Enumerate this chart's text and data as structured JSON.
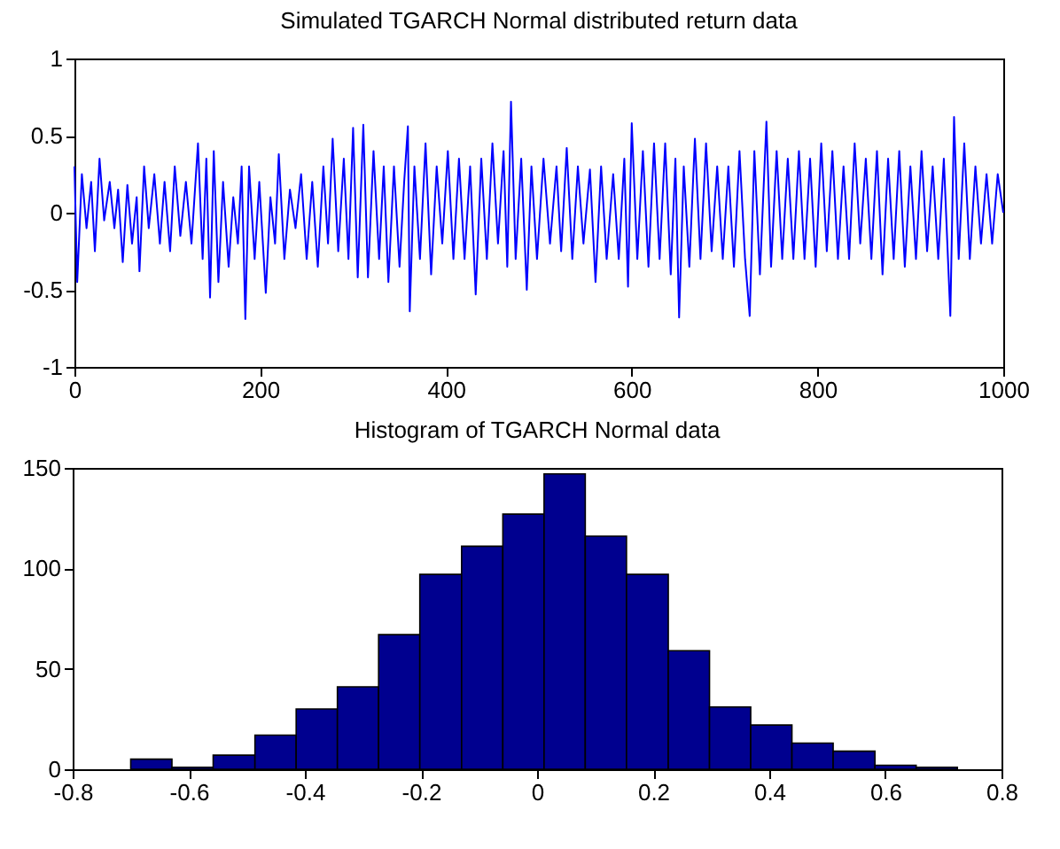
{
  "chart_data": [
    {
      "type": "line",
      "title": "Simulated TGARCH Normal distributed return data",
      "color": "#0000ff",
      "xlim": [
        0,
        1000
      ],
      "ylim": [
        -1,
        1
      ],
      "xticks": [
        0,
        200,
        400,
        600,
        800,
        1000
      ],
      "yticks": [
        -1,
        -0.5,
        0,
        0.5,
        1
      ],
      "grid": false,
      "x": [
        0,
        3,
        8,
        13,
        18,
        22,
        27,
        32,
        38,
        43,
        47,
        52,
        57,
        62,
        67,
        70,
        75,
        80,
        86,
        92,
        97,
        103,
        108,
        114,
        120,
        126,
        133,
        138,
        142,
        146,
        150,
        155,
        160,
        166,
        171,
        176,
        180,
        184,
        188,
        194,
        199,
        206,
        211,
        216,
        220,
        226,
        232,
        238,
        244,
        250,
        256,
        262,
        268,
        273,
        278,
        284,
        290,
        295,
        300,
        305,
        311,
        316,
        322,
        328,
        333,
        338,
        344,
        350,
        355,
        359,
        361,
        366,
        372,
        378,
        384,
        390,
        396,
        402,
        408,
        414,
        420,
        426,
        432,
        438,
        444,
        450,
        456,
        462,
        466,
        470,
        475,
        481,
        487,
        492,
        498,
        505,
        512,
        519,
        524,
        530,
        536,
        542,
        548,
        555,
        561,
        567,
        573,
        580,
        586,
        592,
        596,
        600,
        606,
        612,
        618,
        624,
        630,
        636,
        642,
        647,
        651,
        656,
        662,
        668,
        674,
        680,
        686,
        692,
        698,
        704,
        710,
        716,
        722,
        727,
        732,
        738,
        745,
        750,
        756,
        762,
        768,
        774,
        780,
        786,
        792,
        798,
        804,
        810,
        816,
        822,
        828,
        834,
        840,
        846,
        852,
        858,
        864,
        870,
        876,
        882,
        888,
        894,
        900,
        906,
        912,
        918,
        924,
        930,
        936,
        943,
        947,
        952,
        958,
        964,
        970,
        976,
        982,
        988,
        994,
        1000
      ],
      "values": [
        0.3,
        -0.45,
        0.25,
        -0.1,
        0.2,
        -0.25,
        0.35,
        -0.05,
        0.2,
        -0.1,
        0.15,
        -0.32,
        0.18,
        -0.2,
        0.1,
        -0.38,
        0.3,
        -0.1,
        0.25,
        -0.2,
        0.2,
        -0.25,
        0.3,
        -0.15,
        0.2,
        -0.2,
        0.45,
        -0.3,
        0.35,
        -0.55,
        0.4,
        -0.45,
        0.2,
        -0.35,
        0.1,
        -0.2,
        0.3,
        -0.69,
        0.3,
        -0.3,
        0.2,
        -0.52,
        0.1,
        -0.2,
        0.38,
        -0.3,
        0.15,
        -0.1,
        0.25,
        -0.3,
        0.2,
        -0.35,
        0.3,
        -0.2,
        0.48,
        -0.25,
        0.35,
        -0.3,
        0.55,
        -0.42,
        0.57,
        -0.42,
        0.4,
        -0.3,
        0.3,
        -0.45,
        0.3,
        -0.35,
        0.2,
        0.56,
        -0.64,
        0.3,
        -0.3,
        0.45,
        -0.4,
        0.3,
        -0.2,
        0.4,
        -0.3,
        0.35,
        -0.3,
        0.3,
        -0.53,
        0.35,
        -0.3,
        0.45,
        -0.2,
        0.4,
        -0.35,
        0.72,
        -0.3,
        0.35,
        -0.5,
        0.3,
        -0.3,
        0.35,
        -0.2,
        0.3,
        -0.25,
        0.42,
        -0.3,
        0.3,
        -0.2,
        0.28,
        -0.45,
        0.3,
        -0.3,
        0.25,
        -0.3,
        0.35,
        -0.48,
        0.58,
        -0.3,
        0.4,
        -0.35,
        0.45,
        -0.3,
        0.45,
        -0.4,
        0.35,
        -0.68,
        0.3,
        -0.35,
        0.48,
        -0.3,
        0.45,
        -0.25,
        0.3,
        -0.3,
        0.3,
        -0.35,
        0.4,
        -0.3,
        -0.67,
        0.4,
        -0.4,
        0.59,
        -0.35,
        0.4,
        -0.3,
        0.35,
        -0.3,
        0.4,
        -0.3,
        0.35,
        -0.35,
        0.45,
        -0.25,
        0.4,
        -0.3,
        0.3,
        -0.3,
        0.45,
        -0.2,
        0.35,
        -0.3,
        0.4,
        -0.4,
        0.35,
        -0.3,
        0.4,
        -0.35,
        0.3,
        -0.3,
        0.4,
        -0.25,
        0.3,
        -0.3,
        0.35,
        -0.67,
        0.62,
        -0.3,
        0.45,
        -0.3,
        0.3,
        -0.2,
        0.25,
        -0.2,
        0.25,
        0
      ]
    },
    {
      "type": "histogram",
      "title": "Histogram of TGARCH Normal data",
      "color": "#00008f",
      "xlim": [
        -0.8,
        0.8
      ],
      "ylim": [
        0,
        150
      ],
      "xticks": [
        -0.8,
        -0.6,
        -0.4,
        -0.2,
        0,
        0.2,
        0.4,
        0.6,
        0.8
      ],
      "yticks": [
        0,
        50,
        100,
        150
      ],
      "grid": false,
      "bins": [
        -0.7,
        -0.629,
        -0.558,
        -0.486,
        -0.415,
        -0.344,
        -0.273,
        -0.202,
        -0.13,
        -0.059,
        0.012,
        0.083,
        0.154,
        0.226,
        0.297,
        0.368,
        0.439,
        0.51,
        0.582,
        0.653,
        0.724
      ],
      "values": [
        5,
        1,
        7,
        17,
        30,
        41,
        67,
        97,
        111,
        127,
        147,
        116,
        97,
        59,
        31,
        22,
        13,
        9,
        2,
        1
      ]
    }
  ]
}
